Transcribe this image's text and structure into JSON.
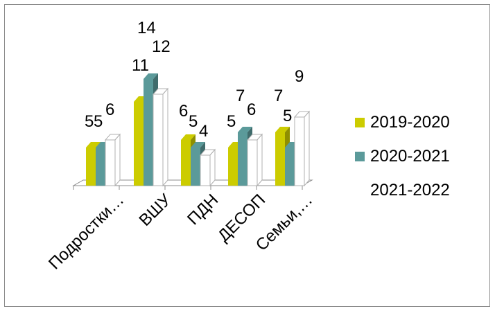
{
  "chart_data": {
    "type": "bar",
    "categories": [
      "Подростки…",
      "ВШУ",
      "ПДН",
      "ДЕСОП",
      "Семьи,…"
    ],
    "series": [
      {
        "name": "2019-2020",
        "values": [
          5,
          11,
          6,
          5,
          7
        ]
      },
      {
        "name": "2020-2021",
        "values": [
          5,
          14,
          5,
          7,
          5
        ]
      },
      {
        "name": "2021-2022",
        "values": [
          6,
          12,
          4,
          6,
          9
        ]
      }
    ],
    "colors": [
      "#cccc00",
      "#5b9a9a",
      "#ffffff"
    ],
    "ylim": [
      0,
      14
    ],
    "grid": false,
    "legend": "right",
    "style": "3d-clustered-column"
  }
}
